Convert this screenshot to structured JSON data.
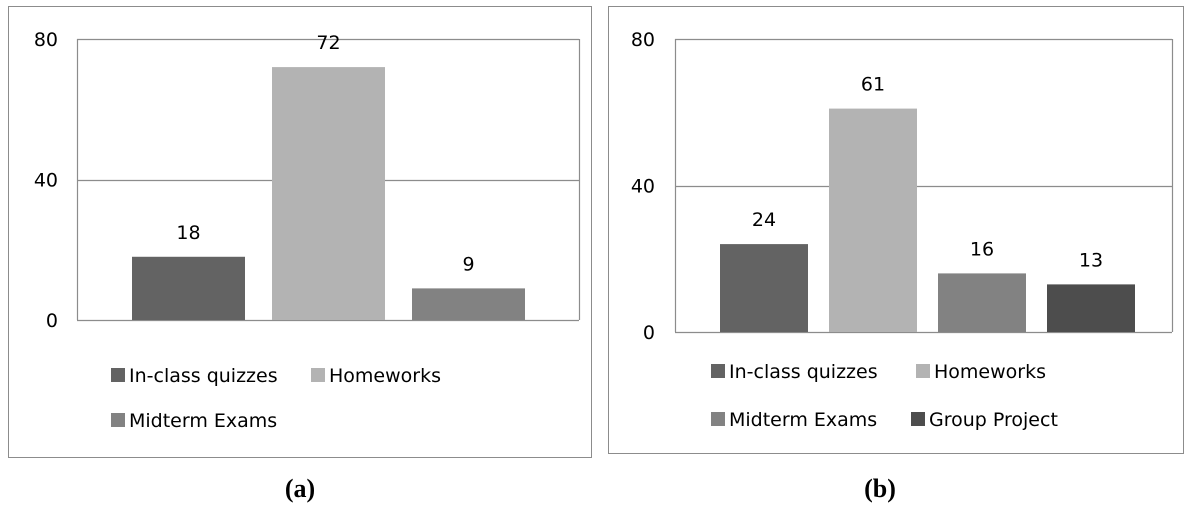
{
  "chart_data": [
    {
      "type": "bar",
      "caption": "(a)",
      "categories": [
        "In-class quizzes",
        "Homeworks",
        "Midterm Exams"
      ],
      "values": [
        18,
        72,
        9
      ],
      "colors": [
        "#636363",
        "#b3b3b3",
        "#828282"
      ],
      "y_ticks": [
        "0",
        "40",
        "80"
      ],
      "ylim": [
        0,
        80
      ],
      "grid": true,
      "legend_position": "bottom",
      "title": "",
      "xlabel": "",
      "ylabel": ""
    },
    {
      "type": "bar",
      "caption": "(b)",
      "categories": [
        "In-class quizzes",
        "Homeworks",
        "Midterm Exams",
        "Group Project"
      ],
      "values": [
        24,
        61,
        16,
        13
      ],
      "colors": [
        "#636363",
        "#b3b3b3",
        "#828282",
        "#4d4d4d"
      ],
      "y_ticks": [
        "0",
        "40",
        "80"
      ],
      "ylim": [
        0,
        80
      ],
      "grid": true,
      "legend_position": "bottom",
      "title": "",
      "xlabel": "",
      "ylabel": ""
    }
  ]
}
